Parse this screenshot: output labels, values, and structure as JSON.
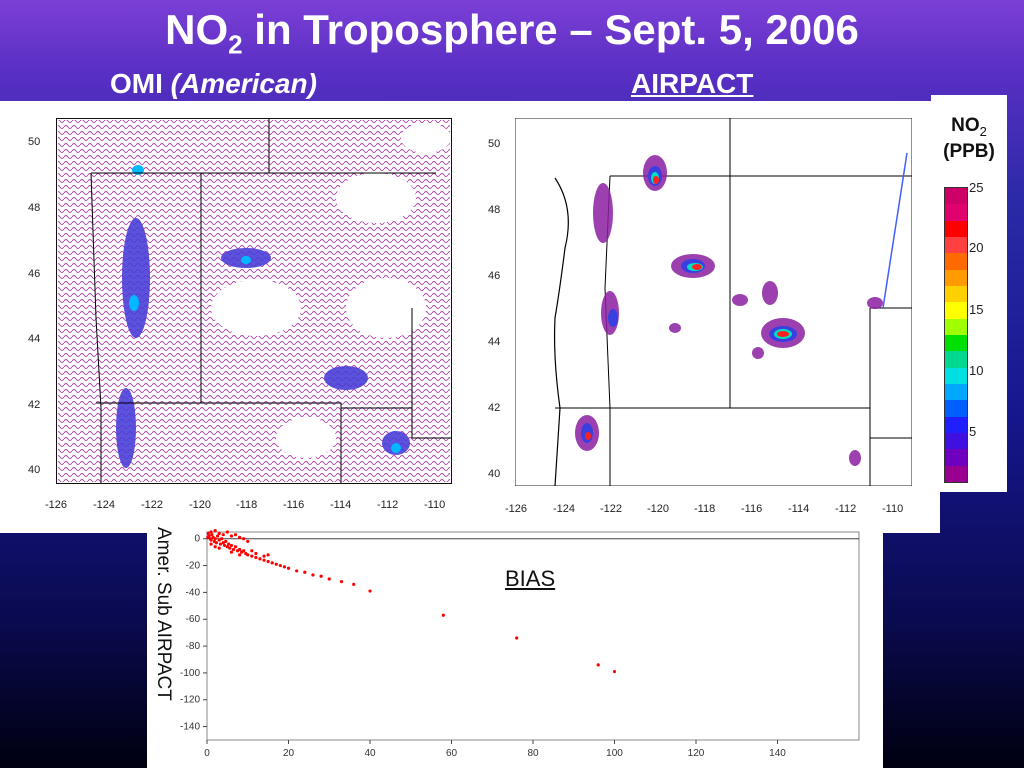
{
  "title": {
    "prefix": "NO",
    "sub": "2",
    "suffix": " in Troposphere – Sept. 5, 2006"
  },
  "labels": {
    "omi_main": "OMI ",
    "omi_italic": "(American)",
    "airpact": "AIRPACT"
  },
  "map_axes": {
    "y_ticks": [
      "50",
      "48",
      "46",
      "44",
      "42",
      "40"
    ],
    "x_ticks": [
      "-126",
      "-124",
      "-122",
      "-120",
      "-118",
      "-116",
      "-114",
      "-112",
      "-110"
    ]
  },
  "colorbar": {
    "title_line1": "NO",
    "title_sub": "2",
    "title_line2": "(PPB)",
    "ticks": [
      "25",
      "20",
      "15",
      "10",
      "5"
    ],
    "colors": [
      "#cc0066",
      "#e0006e",
      "#ff0000",
      "#ff4040",
      "#ff6a00",
      "#ff9a00",
      "#ffd000",
      "#ffff00",
      "#a0ff00",
      "#00e000",
      "#00d890",
      "#00e0e0",
      "#00a8ff",
      "#0060ff",
      "#2020ff",
      "#4010e0",
      "#7000c0",
      "#9a0090"
    ]
  },
  "bias": {
    "label": "BIAS",
    "ylabel": "Amer.  Sub  AIRPACT",
    "y_ticks": [
      "0",
      "-20",
      "-40",
      "-60",
      "-80",
      "-100",
      "-120",
      "-140"
    ],
    "x_ticks": [
      "0",
      "20",
      "40",
      "60",
      "80",
      "100",
      "120",
      "140"
    ]
  },
  "chart_data": {
    "type": "scatter",
    "title": "BIAS",
    "xlabel": "",
    "ylabel": "Amer.  Sub  AIRPACT",
    "xlim": [
      0,
      160
    ],
    "ylim": [
      -150,
      5
    ],
    "series": [
      {
        "color": "#ff0000",
        "points": [
          [
            0.2,
            1
          ],
          [
            0.5,
            2
          ],
          [
            0.8,
            0
          ],
          [
            1,
            -1
          ],
          [
            1.2,
            3
          ],
          [
            1.5,
            1
          ],
          [
            1.8,
            -2
          ],
          [
            2,
            0
          ],
          [
            2.3,
            -3
          ],
          [
            2.6,
            2
          ],
          [
            3,
            -1
          ],
          [
            3.3,
            -4
          ],
          [
            3.6,
            0
          ],
          [
            4,
            -3
          ],
          [
            4.3,
            -5
          ],
          [
            4.6,
            -2
          ],
          [
            5,
            -6
          ],
          [
            5.3,
            -4
          ],
          [
            5.6,
            -7
          ],
          [
            6,
            -5
          ],
          [
            6.5,
            -8
          ],
          [
            7,
            -6
          ],
          [
            7.5,
            -9
          ],
          [
            8,
            -8
          ],
          [
            8.5,
            -10
          ],
          [
            9,
            -9
          ],
          [
            9.5,
            -11
          ],
          [
            10,
            -12
          ],
          [
            11,
            -13
          ],
          [
            12,
            -14
          ],
          [
            13,
            -15
          ],
          [
            14,
            -16
          ],
          [
            15,
            -17
          ],
          [
            16,
            -18
          ],
          [
            17,
            -19
          ],
          [
            18,
            -20
          ],
          [
            19,
            -21
          ],
          [
            20,
            -22
          ],
          [
            22,
            -24
          ],
          [
            24,
            -25
          ],
          [
            26,
            -27
          ],
          [
            28,
            -28
          ],
          [
            30,
            -30
          ],
          [
            33,
            -32
          ],
          [
            36,
            -34
          ],
          [
            40,
            -39
          ],
          [
            58,
            -57
          ],
          [
            76,
            -74
          ],
          [
            96,
            -94
          ],
          [
            100,
            -99
          ],
          [
            0.3,
            4
          ],
          [
            1,
            5
          ],
          [
            2,
            6
          ],
          [
            3,
            4
          ],
          [
            4,
            3
          ],
          [
            5,
            5
          ],
          [
            6,
            2
          ],
          [
            7,
            3
          ],
          [
            8,
            1
          ],
          [
            9,
            0
          ],
          [
            10,
            -2
          ],
          [
            1,
            -4
          ],
          [
            2,
            -6
          ],
          [
            3,
            -7
          ],
          [
            6,
            -10
          ],
          [
            8,
            -12
          ],
          [
            11,
            -9
          ],
          [
            12,
            -11
          ],
          [
            14,
            -13
          ],
          [
            15,
            -12
          ]
        ]
      }
    ]
  }
}
